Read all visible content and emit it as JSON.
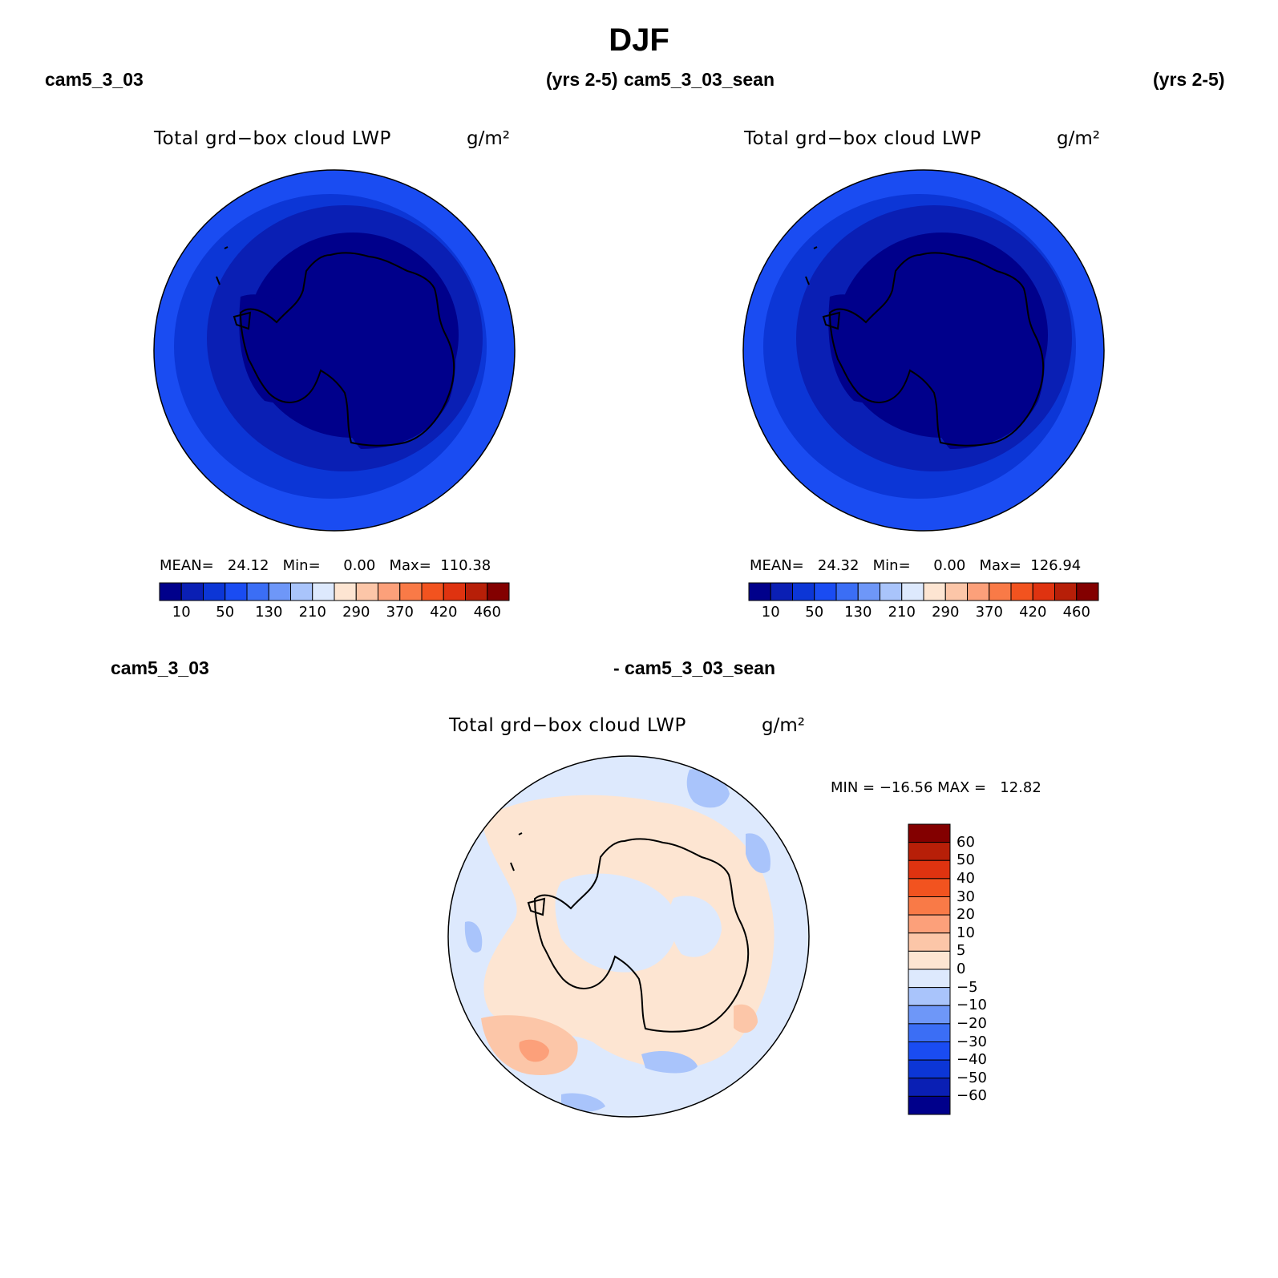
{
  "figure": {
    "title": "DJF",
    "left_case": "cam5_3_03",
    "left_years": "(yrs 2-5)",
    "right_case": "cam5_3_03_sean",
    "right_years": "(yrs 2-5)",
    "diff_case_a": "cam5_3_03",
    "diff_case_b": "- cam5_3_03_sean"
  },
  "panels": [
    {
      "variable": "Total grd−box cloud LWP",
      "units": "g/m²",
      "stats": "MEAN=   24.12   Min=     0.00   Max=  110.38"
    },
    {
      "variable": "Total grd−box cloud LWP",
      "units": "g/m²",
      "stats": "MEAN=   24.32   Min=     0.00   Max=  126.94"
    }
  ],
  "diff_panel": {
    "variable": "Total grd−box cloud LWP",
    "units": "g/m²",
    "stats": "MIN = −16.56 MAX =   12.82"
  },
  "colorbar_main": {
    "colors": [
      "#00008b",
      "#0a1fb4",
      "#0c36d6",
      "#1a4cf2",
      "#3b6ef5",
      "#6e97f8",
      "#a9c4fb",
      "#dde9fd",
      "#fde5d2",
      "#fcc6a8",
      "#fca07a",
      "#f97a47",
      "#f2531f",
      "#df3310",
      "#b71f08",
      "#830000"
    ],
    "labels": [
      "10",
      "50",
      "130",
      "210",
      "290",
      "370",
      "420",
      "460"
    ]
  },
  "colorbar_diff": {
    "colors_top_down": [
      "#830000",
      "#b71f08",
      "#df3310",
      "#f2531f",
      "#f97a47",
      "#fca07a",
      "#fcc6a8",
      "#fde5d2",
      "#dde9fd",
      "#a9c4fb",
      "#6e97f8",
      "#3b6ef5",
      "#1a4cf2",
      "#0c36d6",
      "#0a1fb4",
      "#00008b"
    ],
    "labels": [
      "60",
      "50",
      "40",
      "30",
      "20",
      "10",
      "5",
      "0",
      "−5",
      "−10",
      "−20",
      "−30",
      "−40",
      "−50",
      "−60"
    ]
  }
}
